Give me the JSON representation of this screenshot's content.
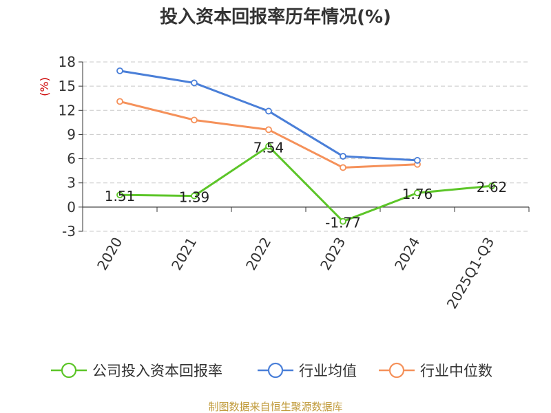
{
  "chart_data": {
    "type": "line",
    "title": "投入资本回报率历年情况(%)",
    "ylabel": "(%)",
    "categories": [
      "2020",
      "2021",
      "2022",
      "2023",
      "2024",
      "2025Q1-Q3"
    ],
    "ylim": [
      -3,
      18
    ],
    "yticks": [
      -3,
      0,
      3,
      6,
      9,
      12,
      15,
      18
    ],
    "grid": true,
    "legend_position": "bottom",
    "series": [
      {
        "name": "公司投入资本回报率",
        "color": "#5cc528",
        "values": [
          1.51,
          1.39,
          7.54,
          -1.77,
          1.76,
          2.62
        ],
        "labels": [
          "1.51",
          "1.39",
          "7.54",
          "-1.77",
          "1.76",
          "2.62"
        ]
      },
      {
        "name": "行业均值",
        "color": "#4a7fd8",
        "values": [
          16.9,
          15.4,
          11.9,
          6.3,
          5.8,
          null
        ]
      },
      {
        "name": "行业中位数",
        "color": "#f5915a",
        "values": [
          13.1,
          10.8,
          9.6,
          4.9,
          5.3,
          null
        ]
      }
    ]
  },
  "source": "制图数据来自恒生聚源数据库"
}
